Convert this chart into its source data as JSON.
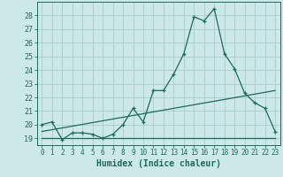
{
  "title": "",
  "xlabel": "Humidex (Indice chaleur)",
  "ylabel": "",
  "bg_color": "#cce8e8",
  "grid_color": "#aacccc",
  "line_color": "#1a6b5a",
  "xlim": [
    -0.5,
    23.5
  ],
  "ylim": [
    18.5,
    29.0
  ],
  "xticks": [
    0,
    1,
    2,
    3,
    4,
    5,
    6,
    7,
    8,
    9,
    10,
    11,
    12,
    13,
    14,
    15,
    16,
    17,
    18,
    19,
    20,
    21,
    22,
    23
  ],
  "yticks": [
    19,
    20,
    21,
    22,
    23,
    24,
    25,
    26,
    27,
    28
  ],
  "line1_x": [
    0,
    1,
    2,
    3,
    4,
    5,
    6,
    7,
    8,
    9,
    10,
    11,
    12,
    13,
    14,
    15,
    16,
    17,
    18,
    19,
    20,
    21,
    22,
    23
  ],
  "line1_y": [
    20.0,
    20.2,
    18.9,
    19.4,
    19.4,
    19.3,
    19.0,
    19.3,
    20.0,
    21.2,
    20.2,
    22.5,
    22.5,
    23.7,
    25.2,
    27.9,
    27.6,
    28.5,
    25.2,
    24.1,
    22.3,
    21.6,
    21.2,
    19.5
  ],
  "line2_x": [
    0,
    23
  ],
  "line2_y": [
    19.0,
    19.0
  ],
  "line3_x": [
    0,
    23
  ],
  "line3_y": [
    19.5,
    22.5
  ],
  "xlabel_fontsize": 7,
  "tick_fontsize": 6
}
